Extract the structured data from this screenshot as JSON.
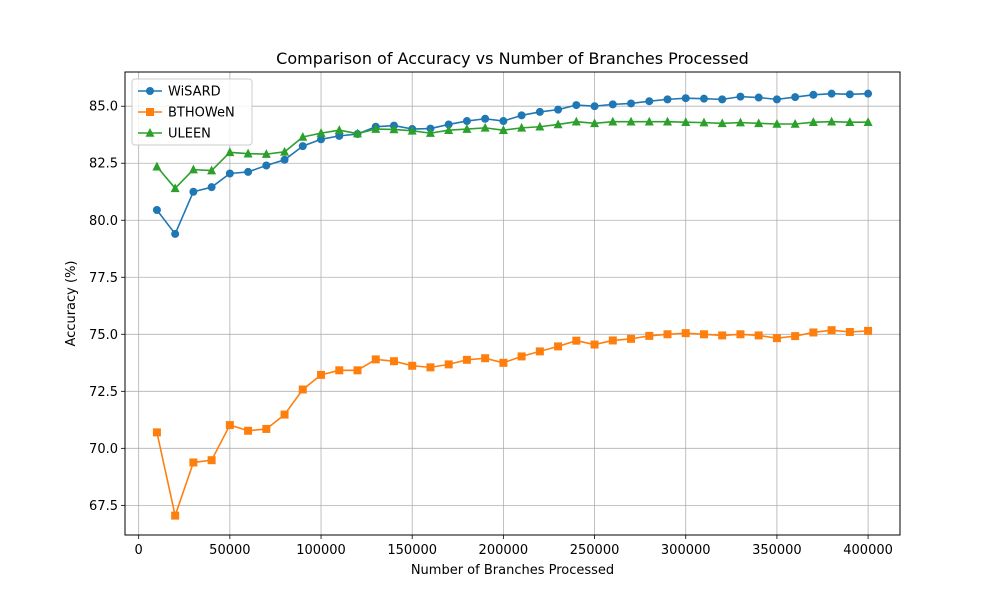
{
  "chart_data": {
    "type": "line",
    "title": "Comparison of Accuracy vs Number of Branches Processed",
    "xlabel": "Number of Branches Processed",
    "ylabel": "Accuracy (%)",
    "xlim": [
      -7500,
      417500
    ],
    "ylim": [
      66.2,
      86.5
    ],
    "xticks": [
      0,
      50000,
      100000,
      150000,
      200000,
      250000,
      300000,
      350000,
      400000
    ],
    "xtick_labels": [
      "0",
      "50000",
      "100000",
      "150000",
      "200000",
      "250000",
      "300000",
      "350000",
      "400000"
    ],
    "yticks": [
      67.5,
      70.0,
      72.5,
      75.0,
      77.5,
      80.0,
      82.5,
      85.0
    ],
    "ytick_labels": [
      "67.5",
      "70.0",
      "72.5",
      "75.0",
      "77.5",
      "80.0",
      "82.5",
      "85.0"
    ],
    "grid": true,
    "legend_position": "upper-left",
    "x": [
      10000,
      20000,
      30000,
      40000,
      50000,
      60000,
      70000,
      80000,
      90000,
      100000,
      110000,
      120000,
      130000,
      140000,
      150000,
      160000,
      170000,
      180000,
      190000,
      200000,
      210000,
      220000,
      230000,
      240000,
      250000,
      260000,
      270000,
      280000,
      290000,
      300000,
      310000,
      320000,
      330000,
      340000,
      350000,
      360000,
      370000,
      380000,
      390000,
      400000
    ],
    "series": [
      {
        "name": "WiSARD",
        "color": "#1f77b4",
        "marker": "circle",
        "values": [
          80.45,
          79.4,
          81.25,
          81.45,
          82.05,
          82.12,
          82.4,
          82.65,
          83.25,
          83.55,
          83.7,
          83.78,
          84.1,
          84.15,
          84.0,
          84.02,
          84.2,
          84.35,
          84.45,
          84.35,
          84.6,
          84.75,
          84.85,
          85.05,
          85.0,
          85.08,
          85.12,
          85.22,
          85.3,
          85.35,
          85.33,
          85.3,
          85.42,
          85.38,
          85.3,
          85.4,
          85.5,
          85.55,
          85.52,
          85.55
        ]
      },
      {
        "name": "BTHOWeN",
        "color": "#ff7f0e",
        "marker": "square",
        "values": [
          70.7,
          67.05,
          69.38,
          69.48,
          71.02,
          70.77,
          70.85,
          71.48,
          72.58,
          73.22,
          73.42,
          73.42,
          73.9,
          73.82,
          73.62,
          73.55,
          73.68,
          73.88,
          73.95,
          73.75,
          74.03,
          74.25,
          74.47,
          74.72,
          74.55,
          74.73,
          74.8,
          74.93,
          75.0,
          75.05,
          75.0,
          74.95,
          75.0,
          74.95,
          74.83,
          74.92,
          75.08,
          75.18,
          75.1,
          75.15
        ]
      },
      {
        "name": "ULEEN",
        "color": "#2ca02c",
        "marker": "triangle",
        "values": [
          82.35,
          81.4,
          82.22,
          82.18,
          82.98,
          82.92,
          82.9,
          83.0,
          83.65,
          83.82,
          83.95,
          83.8,
          84.0,
          83.98,
          83.92,
          83.82,
          83.95,
          84.0,
          84.05,
          83.95,
          84.05,
          84.1,
          84.2,
          84.32,
          84.25,
          84.32,
          84.32,
          84.32,
          84.32,
          84.3,
          84.28,
          84.25,
          84.28,
          84.25,
          84.22,
          84.22,
          84.3,
          84.32,
          84.3,
          84.3
        ]
      }
    ]
  }
}
